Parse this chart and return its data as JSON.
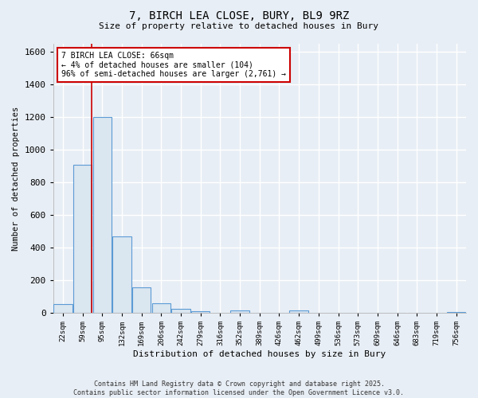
{
  "title_line1": "7, BIRCH LEA CLOSE, BURY, BL9 9RZ",
  "title_line2": "Size of property relative to detached houses in Bury",
  "xlabel": "Distribution of detached houses by size in Bury",
  "ylabel": "Number of detached properties",
  "bar_labels": [
    "22sqm",
    "59sqm",
    "95sqm",
    "132sqm",
    "169sqm",
    "206sqm",
    "242sqm",
    "279sqm",
    "316sqm",
    "352sqm",
    "389sqm",
    "426sqm",
    "462sqm",
    "499sqm",
    "536sqm",
    "573sqm",
    "609sqm",
    "646sqm",
    "683sqm",
    "719sqm",
    "756sqm"
  ],
  "bar_values": [
    55,
    910,
    1200,
    470,
    155,
    58,
    27,
    10,
    0,
    15,
    0,
    0,
    15,
    0,
    0,
    0,
    0,
    0,
    0,
    0,
    5
  ],
  "bar_color": "#dae6f0",
  "bar_edge_color": "#5b9bd5",
  "ylim": [
    0,
    1650
  ],
  "yticks": [
    0,
    200,
    400,
    600,
    800,
    1000,
    1200,
    1400,
    1600
  ],
  "red_line_x": 1.45,
  "annotation_text": "7 BIRCH LEA CLOSE: 66sqm\n← 4% of detached houses are smaller (104)\n96% of semi-detached houses are larger (2,761) →",
  "annotation_box_color": "#ffffff",
  "annotation_border_color": "#cc0000",
  "background_color": "#e8eef5",
  "plot_bg_color": "#e8eef5",
  "grid_color": "#ffffff",
  "footer_line1": "Contains HM Land Registry data © Crown copyright and database right 2025.",
  "footer_line2": "Contains public sector information licensed under the Open Government Licence v3.0."
}
